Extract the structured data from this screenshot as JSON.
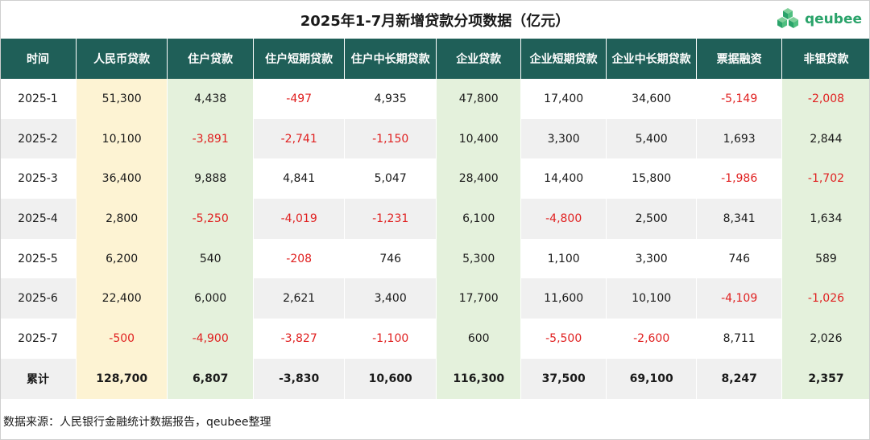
{
  "title": "2025年1-7月新增贷款分项数据（亿元）",
  "logo": {
    "text": "qeubee",
    "icon": "cube-cluster-logo-icon",
    "color": "#2aa36a"
  },
  "headers": [
    "时间",
    "人民币贷款",
    "住户贷款",
    "住户短期贷款",
    "住户中长期贷款",
    "企业贷款",
    "企业短期贷款",
    "企业中长期贷款",
    "票据融资",
    "非银贷款"
  ],
  "rows": [
    [
      "2025-1",
      "51,300",
      "4,438",
      "-497",
      "4,935",
      "47,800",
      "17,400",
      "34,600",
      "-5,149",
      "-2,008"
    ],
    [
      "2025-2",
      "10,100",
      "-3,891",
      "-2,741",
      "-1,150",
      "10,400",
      "3,300",
      "5,400",
      "1,693",
      "2,844"
    ],
    [
      "2025-3",
      "36,400",
      "9,888",
      "4,841",
      "5,047",
      "28,400",
      "14,400",
      "15,800",
      "-1,986",
      "-1,702"
    ],
    [
      "2025-4",
      "2,800",
      "-5,250",
      "-4,019",
      "-1,231",
      "6,100",
      "-4,800",
      "2,500",
      "8,341",
      "1,634"
    ],
    [
      "2025-5",
      "6,200",
      "540",
      "-208",
      "746",
      "5,300",
      "1,100",
      "3,300",
      "746",
      "589"
    ],
    [
      "2025-6",
      "22,400",
      "6,000",
      "2,621",
      "3,400",
      "17,700",
      "11,600",
      "10,100",
      "-4,109",
      "-1,026"
    ],
    [
      "2025-7",
      "-500",
      "-4,900",
      "-3,827",
      "-1,100",
      "600",
      "-5,500",
      "-2,600",
      "8,711",
      "2,026"
    ]
  ],
  "total": [
    "累计",
    "128,700",
    "6,807",
    "-3,830",
    "10,600",
    "116,300",
    "37,500",
    "69,100",
    "8,247",
    "2,357"
  ],
  "source": "数据来源：人民银行金融统计数据报告，qeubee整理",
  "colors": {
    "header_bg": "#1f5f58",
    "rmb_col": "#fdf3d3",
    "green_col": "#e4f1dc",
    "stripe": "#f0f0f0",
    "negative": "#e02020"
  }
}
